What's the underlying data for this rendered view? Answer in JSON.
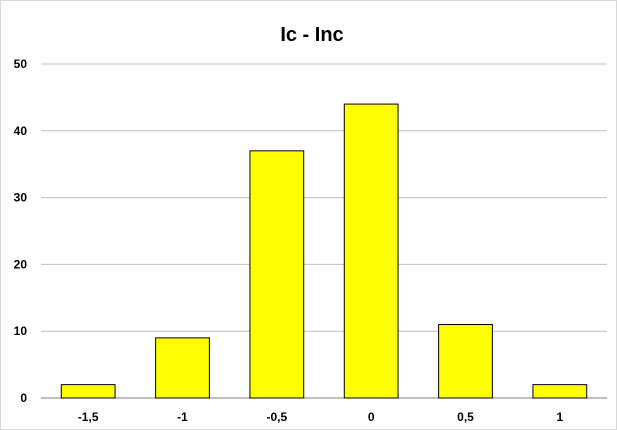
{
  "chart_data": {
    "type": "bar",
    "title": "Ic - Inc",
    "categories": [
      "-1,5",
      "-1",
      "-0,5",
      "0",
      "0,5",
      "1"
    ],
    "values": [
      2,
      9,
      37,
      44,
      11,
      2
    ],
    "ylim": [
      0,
      50
    ],
    "yticks": [
      "0",
      "10",
      "20",
      "30",
      "40",
      "50"
    ],
    "ytick_values": [
      0,
      10,
      20,
      30,
      40,
      50
    ],
    "grid": true,
    "legend": "none",
    "colors": {
      "bar_fill": "#ffff00",
      "bar_stroke": "#000000",
      "grid": "#bfbfbf"
    }
  }
}
